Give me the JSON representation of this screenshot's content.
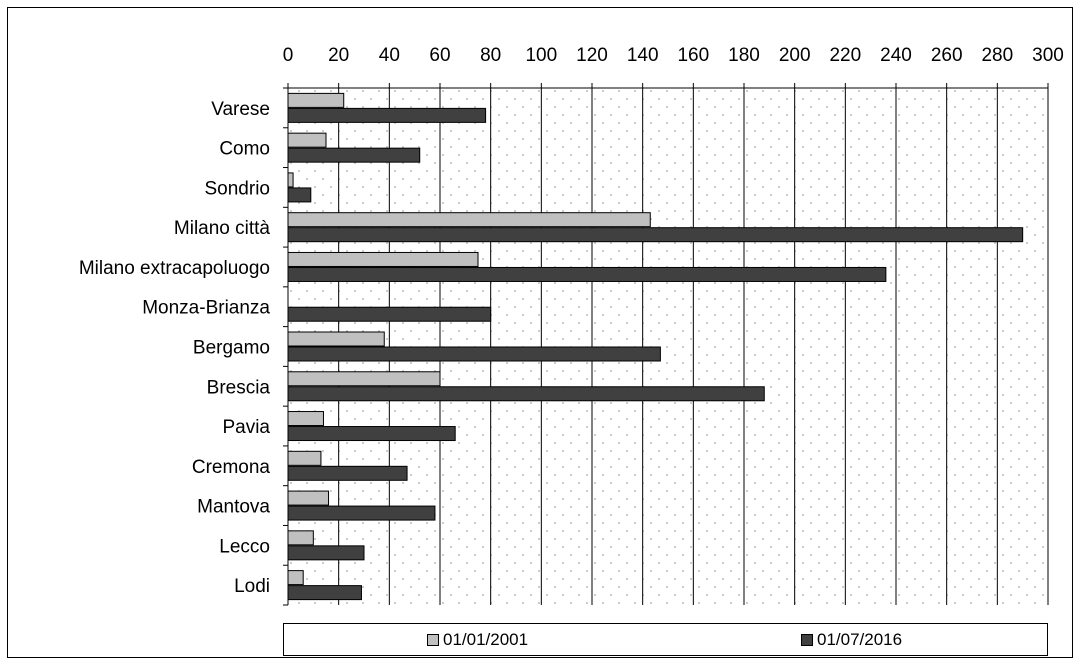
{
  "chart_data": {
    "type": "bar",
    "orientation": "horizontal",
    "categories": [
      "Varese",
      "Como",
      "Sondrio",
      "Milano città",
      "Milano extracapoluogo",
      "Monza-Brianza",
      "Bergamo",
      "Brescia",
      "Pavia",
      "Cremona",
      "Mantova",
      "Lecco",
      "Lodi"
    ],
    "series": [
      {
        "name": "01/01/2001",
        "color": "#c0c0c0",
        "values": [
          22,
          15,
          2,
          143,
          75,
          null,
          38,
          60,
          14,
          13,
          16,
          10,
          6
        ]
      },
      {
        "name": "01/07/2016",
        "color": "#404040",
        "values": [
          78,
          52,
          9,
          290,
          236,
          80,
          147,
          188,
          66,
          47,
          58,
          30,
          29
        ]
      }
    ],
    "x_ticks": [
      "0",
      "20",
      "40",
      "60",
      "80",
      "100",
      "120",
      "140",
      "160",
      "180",
      "200",
      "220",
      "240",
      "260",
      "280",
      "300"
    ],
    "xlim": [
      0,
      300
    ],
    "x_axis_position": "top",
    "grid": true,
    "background_pattern": "dotted",
    "legend_position": "bottom"
  }
}
